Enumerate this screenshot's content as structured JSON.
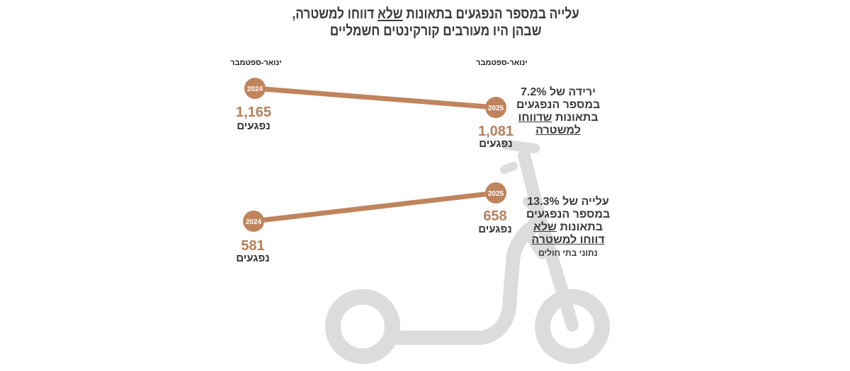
{
  "title": {
    "line1_a": "עלייה במספר הנפגעים בתאונות ",
    "line1_u": "שלא",
    "line1_b": " דווחו למשטרה,",
    "line2": "שבהן היו מעורבים קורקינטים חשמליים"
  },
  "chart_data": {
    "type": "line",
    "title": "עלייה במספר הנפגעים בתאונות שלא דווחו למשטרה, שבהן היו מעורבים קורקינטים חשמליים",
    "period_labels": [
      "ינואר-ספטמבר",
      "ינואר-ספטמבר"
    ],
    "categories": [
      "2024",
      "2025"
    ],
    "series": [
      {
        "name": "תאונות שדווחו למשטרה",
        "values": [
          1165,
          1081
        ],
        "labels": [
          "1,165",
          "1,081"
        ],
        "unit": "נפגעים",
        "note": {
          "l1": "ירידה של 7.2%",
          "l2": "במספר הנפגעים",
          "l3a": "בתאונות ",
          "l3u": "שדווחו",
          "l4u": "למשטרה"
        }
      },
      {
        "name": "תאונות שלא דווחו למשטרה",
        "values": [
          581,
          658
        ],
        "labels": [
          "581",
          "658"
        ],
        "unit": "נפגעים",
        "note": {
          "l1": "עלייה של 13.3%",
          "l2": "במספר הנפגעים",
          "l3a": "בתאונות ",
          "l3u": "שלא",
          "l4u": "דווחו למשטרה",
          "source": "נתוני בתי חולים"
        }
      }
    ]
  },
  "colors": {
    "line": "#c0845c",
    "value": "#b5805c",
    "scooter": "#dcdcdc"
  }
}
